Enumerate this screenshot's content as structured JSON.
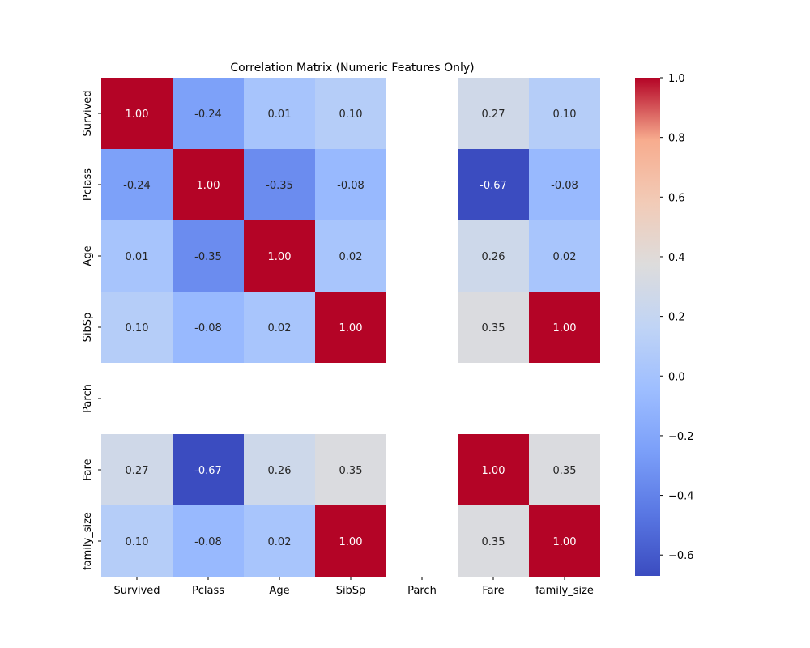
{
  "chart_data": {
    "type": "heatmap",
    "title": "Correlation Matrix (Numeric Features Only)",
    "xlabel": "",
    "ylabel": "",
    "x_labels": [
      "Survived",
      "Pclass",
      "Age",
      "SibSp",
      "Parch",
      "Fare",
      "family_size"
    ],
    "y_labels": [
      "Survived",
      "Pclass",
      "Age",
      "SibSp",
      "Parch",
      "Fare",
      "family_size"
    ],
    "values": [
      [
        1.0,
        -0.24,
        0.01,
        0.1,
        null,
        0.27,
        0.1
      ],
      [
        -0.24,
        1.0,
        -0.35,
        -0.08,
        null,
        -0.67,
        -0.08
      ],
      [
        0.01,
        -0.35,
        1.0,
        0.02,
        null,
        0.26,
        0.02
      ],
      [
        0.1,
        -0.08,
        0.02,
        1.0,
        null,
        0.35,
        1.0
      ],
      [
        null,
        null,
        null,
        null,
        null,
        null,
        null
      ],
      [
        0.27,
        -0.67,
        0.26,
        0.35,
        null,
        1.0,
        0.35
      ],
      [
        0.1,
        -0.08,
        0.02,
        1.0,
        null,
        0.35,
        1.0
      ]
    ],
    "annotation_format": "0.00",
    "colormap": "coolwarm",
    "color_range": [
      -0.67,
      1.0
    ],
    "colorbar": {
      "ticks": [
        1.0,
        0.8,
        0.6,
        0.4,
        0.2,
        0.0,
        -0.2,
        -0.4,
        -0.6
      ],
      "tick_labels": [
        "1.0",
        "0.8",
        "0.6",
        "0.4",
        "0.2",
        "0.0",
        "−0.2",
        "−0.4",
        "−0.6"
      ]
    },
    "grid": false,
    "legend": "colorbar-right"
  }
}
